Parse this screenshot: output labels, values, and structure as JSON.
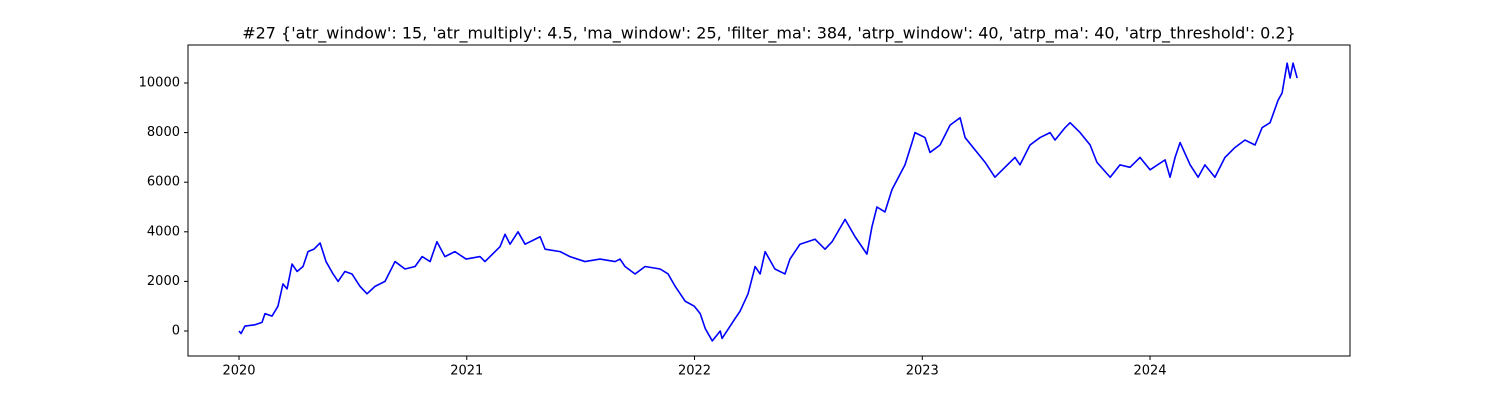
{
  "chart_data": {
    "type": "line",
    "title": "#27 {'atr_window': 15, 'atr_multiply': 4.5, 'ma_window': 25, 'filter_ma': 384, 'atrp_window': 40, 'atrp_ma': 40, 'atrp_threshold': 0.2}",
    "x": [
      2020.0,
      2020.009,
      2020.026,
      2020.07,
      2020.101,
      2020.114,
      2020.145,
      2020.171,
      2020.193,
      2020.211,
      2020.233,
      2020.255,
      2020.281,
      2020.303,
      2020.329,
      2020.356,
      2020.382,
      2020.413,
      2020.435,
      2020.465,
      2020.496,
      2020.531,
      2020.562,
      2020.597,
      2020.641,
      2020.685,
      2020.729,
      2020.773,
      2020.804,
      2020.839,
      2020.869,
      2020.904,
      2020.948,
      2020.997,
      2021.058,
      2021.08,
      2021.146,
      2021.168,
      2021.19,
      2021.225,
      2021.256,
      2021.3,
      2021.322,
      2021.344,
      2021.41,
      2021.453,
      2021.519,
      2021.585,
      2021.651,
      2021.673,
      2021.695,
      2021.739,
      2021.783,
      2021.849,
      2021.884,
      2021.915,
      2021.959,
      2021.999,
      2022.025,
      2022.047,
      2022.078,
      2022.113,
      2022.121,
      2022.178,
      2022.2,
      2022.235,
      2022.266,
      2022.288,
      2022.31,
      2022.353,
      2022.397,
      2022.419,
      2022.463,
      2022.529,
      2022.573,
      2022.604,
      2022.661,
      2022.705,
      2022.757,
      2022.779,
      2022.801,
      2022.836,
      2022.867,
      2022.924,
      2022.955,
      2022.968,
      2023.012,
      2023.034,
      2023.078,
      2023.122,
      2023.166,
      2023.188,
      2023.232,
      2023.276,
      2023.319,
      2023.363,
      2023.407,
      2023.429,
      2023.473,
      2023.517,
      2023.561,
      2023.583,
      2023.627,
      2023.649,
      2023.693,
      2023.737,
      2023.767,
      2023.825,
      2023.868,
      2023.912,
      2023.956,
      2024.0,
      2024.066,
      2024.088,
      2024.11,
      2024.132,
      2024.176,
      2024.211,
      2024.241,
      2024.285,
      2024.329,
      2024.373,
      2024.417,
      2024.461,
      2024.492,
      2024.527,
      2024.562,
      2024.58,
      2024.602,
      2024.615,
      2024.628,
      2024.646
    ],
    "series": [
      {
        "color": "#0000ff",
        "values": [
          0,
          -100,
          200,
          250,
          350,
          700,
          600,
          1000,
          1900,
          1700,
          2700,
          2400,
          2600,
          3200,
          3300,
          3550,
          2800,
          2300,
          2000,
          2400,
          2300,
          1800,
          1500,
          1800,
          2000,
          2800,
          2500,
          2600,
          3000,
          2800,
          3600,
          3000,
          3200,
          2900,
          3000,
          2800,
          3400,
          3900,
          3500,
          4000,
          3500,
          3700,
          3800,
          3300,
          3200,
          3000,
          2800,
          2900,
          2800,
          2900,
          2600,
          2300,
          2600,
          2500,
          2300,
          1800,
          1200,
          1000,
          700,
          100,
          -400,
          0,
          -300,
          500,
          800,
          1500,
          2600,
          2300,
          3200,
          2500,
          2300,
          2900,
          3500,
          3700,
          3300,
          3600,
          4500,
          3800,
          3100,
          4200,
          5000,
          4800,
          5700,
          6700,
          7600,
          8000,
          7800,
          7200,
          7500,
          8300,
          8600,
          7800,
          7300,
          6800,
          6200,
          6600,
          7000,
          6700,
          7500,
          7800,
          8000,
          7700,
          8200,
          8400,
          8000,
          7500,
          6800,
          6200,
          6700,
          6600,
          7000,
          6500,
          6900,
          6200,
          7000,
          7600,
          6700,
          6200,
          6700,
          6200,
          7000,
          7400,
          7700,
          7500,
          8200,
          8400,
          9300,
          9600,
          10800,
          10200,
          10800,
          10200
        ]
      }
    ],
    "xlim": [
      2019.776,
      2024.878
    ],
    "xticks": [
      2020,
      2021,
      2022,
      2023,
      2024
    ],
    "ylim": [
      -1008,
      11532
    ],
    "yticks": [
      0,
      2000,
      4000,
      6000,
      8000,
      10000
    ]
  }
}
